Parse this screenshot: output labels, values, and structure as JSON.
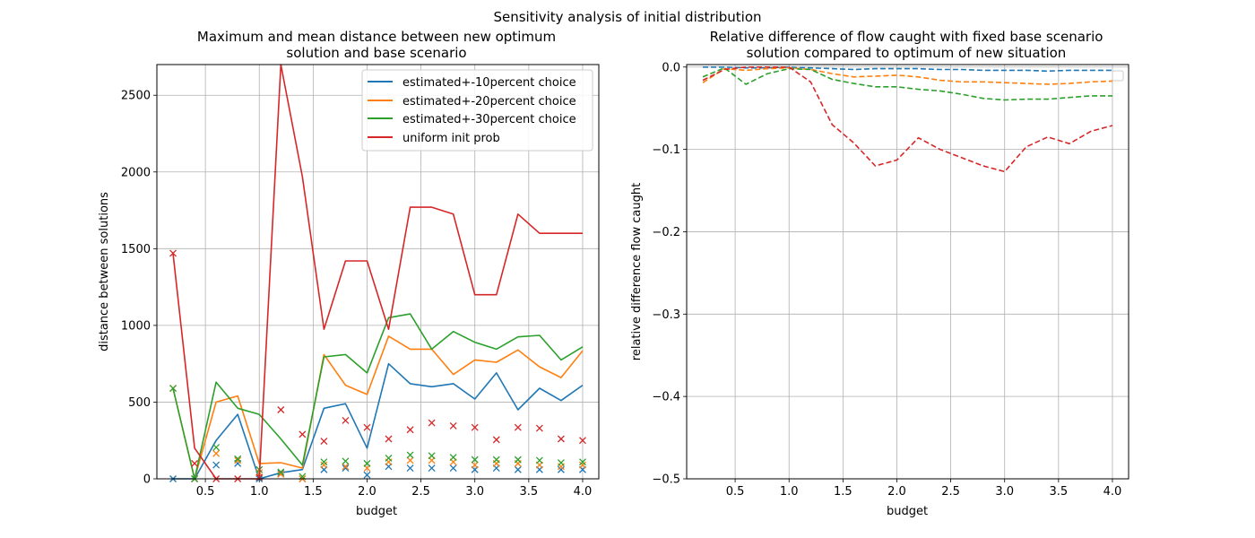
{
  "suptitle": "Sensitivity analysis of initial distribution",
  "colors": {
    "c1": "#1f77b4",
    "c2": "#ff7f0e",
    "c3": "#2ca02c",
    "c4": "#d62728"
  },
  "chart_data": [
    {
      "type": "line",
      "title_line1": "Maximum and mean distance between new optimum",
      "title_line2": "solution and base scenario",
      "xlabel": "budget",
      "ylabel": "distance between solutions",
      "xlim": [
        0.05,
        4.15
      ],
      "ylim": [
        0,
        2700
      ],
      "xticks": [
        0.5,
        1.0,
        1.5,
        2.0,
        2.5,
        3.0,
        3.5,
        4.0
      ],
      "xtick_labels": [
        "0.5",
        "1.0",
        "1.5",
        "2.0",
        "2.5",
        "3.0",
        "3.5",
        "4.0"
      ],
      "yticks": [
        0,
        500,
        1000,
        1500,
        2000,
        2500
      ],
      "ytick_labels": [
        "0",
        "500",
        "1000",
        "1500",
        "2000",
        "2500"
      ],
      "grid": true,
      "legend_position": "top-right",
      "x": [
        0.2,
        0.4,
        0.6,
        0.8,
        1.0,
        1.2,
        1.4,
        1.6,
        1.8,
        2.0,
        2.2,
        2.4,
        2.6,
        2.8,
        3.0,
        3.2,
        3.4,
        3.6,
        3.8,
        4.0
      ],
      "series": [
        {
          "name": "estimated+-10percent choice",
          "color": "#1f77b4",
          "max": [
            0,
            0,
            250,
            420,
            0,
            40,
            60,
            460,
            490,
            200,
            750,
            620,
            600,
            620,
            520,
            690,
            450,
            590,
            510,
            610
          ],
          "mean": [
            0,
            0,
            90,
            100,
            0,
            35,
            0,
            60,
            70,
            25,
            80,
            70,
            70,
            70,
            60,
            70,
            60,
            60,
            60,
            60
          ]
        },
        {
          "name": "estimated+-20percent choice",
          "color": "#ff7f0e",
          "max": [
            590,
            0,
            500,
            540,
            100,
            105,
            70,
            810,
            610,
            550,
            930,
            845,
            845,
            680,
            775,
            760,
            840,
            730,
            660,
            835
          ],
          "mean": [
            590,
            0,
            165,
            120,
            40,
            30,
            0,
            90,
            80,
            70,
            110,
            120,
            120,
            110,
            90,
            100,
            100,
            90,
            80,
            90
          ]
        },
        {
          "name": "estimated+-30percent choice",
          "color": "#2ca02c",
          "max": [
            590,
            0,
            630,
            460,
            420,
            260,
            90,
            795,
            810,
            690,
            1050,
            1075,
            845,
            960,
            890,
            845,
            925,
            935,
            775,
            860
          ],
          "mean": [
            590,
            0,
            205,
            130,
            60,
            45,
            15,
            110,
            115,
            100,
            135,
            155,
            150,
            140,
            125,
            125,
            125,
            120,
            105,
            110
          ]
        },
        {
          "name": "uniform init prob",
          "color": "#d62728",
          "max": [
            1470,
            200,
            0,
            0,
            0,
            2700,
            1970,
            975,
            1420,
            1420,
            975,
            1770,
            1770,
            1725,
            1200,
            1200,
            1725,
            1600,
            1600,
            1600
          ],
          "mean": [
            1470,
            100,
            0,
            0,
            10,
            450,
            290,
            245,
            380,
            335,
            260,
            320,
            365,
            345,
            335,
            255,
            335,
            330,
            260,
            250
          ]
        }
      ]
    },
    {
      "type": "line",
      "title_line1": "Relative difference of flow caught with fixed base scenario",
      "title_line2": "solution compared to optimum of new situation",
      "xlabel": "budget",
      "ylabel": "relative difference flow caught",
      "xlim": [
        0.05,
        4.15
      ],
      "ylim": [
        -0.5,
        0.003
      ],
      "xticks": [
        0.5,
        1.0,
        1.5,
        2.0,
        2.5,
        3.0,
        3.5,
        4.0
      ],
      "xtick_labels": [
        "0.5",
        "1.0",
        "1.5",
        "2.0",
        "2.5",
        "3.0",
        "3.5",
        "4.0"
      ],
      "yticks": [
        0.0,
        -0.1,
        -0.2,
        -0.3,
        -0.4,
        -0.5
      ],
      "ytick_labels": [
        "0.0",
        "−0.1",
        "−0.2",
        "−0.3",
        "−0.4",
        "−0.5"
      ],
      "grid": true,
      "legend_position": "top-right",
      "line_style": "dashed",
      "x": [
        0.2,
        0.4,
        0.6,
        0.8,
        1.0,
        1.2,
        1.4,
        1.6,
        1.8,
        2.0,
        2.2,
        2.4,
        2.6,
        2.8,
        3.0,
        3.2,
        3.4,
        3.6,
        3.8,
        4.0
      ],
      "series": [
        {
          "color": "#1f77b4",
          "values": [
            0.0,
            0.0,
            -0.001,
            -0.001,
            0.0,
            -0.001,
            -0.002,
            -0.003,
            -0.002,
            -0.002,
            -0.002,
            -0.003,
            -0.003,
            -0.004,
            -0.004,
            -0.004,
            -0.005,
            -0.004,
            -0.004,
            -0.004
          ]
        },
        {
          "color": "#ff7f0e",
          "values": [
            -0.019,
            -0.002,
            -0.004,
            -0.002,
            -0.001,
            -0.003,
            -0.008,
            -0.012,
            -0.011,
            -0.01,
            -0.012,
            -0.016,
            -0.018,
            -0.018,
            -0.019,
            -0.02,
            -0.021,
            -0.02,
            -0.018,
            -0.017
          ]
        },
        {
          "color": "#2ca02c",
          "values": [
            -0.012,
            -0.001,
            -0.021,
            -0.008,
            -0.002,
            -0.003,
            -0.015,
            -0.02,
            -0.024,
            -0.024,
            -0.027,
            -0.029,
            -0.033,
            -0.038,
            -0.04,
            -0.039,
            -0.039,
            -0.037,
            -0.035,
            -0.035
          ]
        },
        {
          "color": "#d62728",
          "values": [
            -0.016,
            -0.003,
            0.0,
            0.0,
            0.0,
            -0.018,
            -0.07,
            -0.092,
            -0.12,
            -0.113,
            -0.086,
            -0.1,
            -0.11,
            -0.12,
            -0.127,
            -0.097,
            -0.085,
            -0.093,
            -0.078,
            -0.071
          ]
        }
      ]
    }
  ]
}
